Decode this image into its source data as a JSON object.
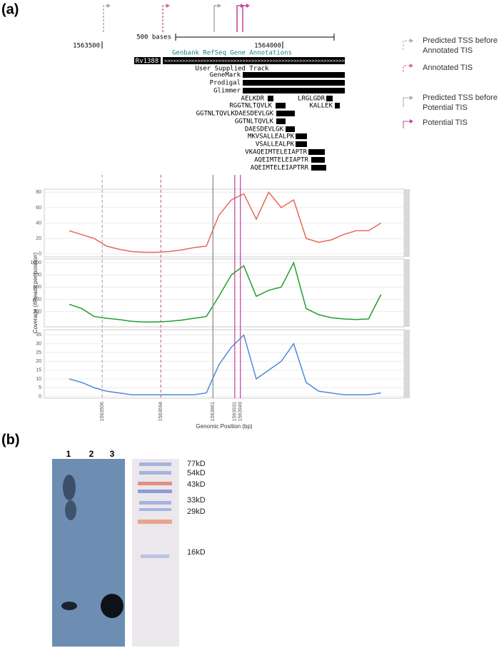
{
  "panel_a": {
    "label": "(a)",
    "legend": [
      [
        "Predicted TSS before",
        "Annotated TIS"
      ],
      [
        "Annotated TIS"
      ],
      [
        "Predicted TSS before",
        "Potential TIS"
      ],
      [
        "Potential TIS"
      ]
    ],
    "browser": {
      "scale_label": "500 bases",
      "positions": [
        "1563500",
        "1564000"
      ],
      "track_title": "Genbank RefSeq Gene Annotations",
      "gene": "Rv1388",
      "user_track": "User Supplied Track",
      "predictors": [
        "GeneMark",
        "Prodigal",
        "Glimmer"
      ],
      "peptides": [
        "AELKDR",
        "LRGLGDR",
        "RGGTNLTQVLK",
        "KALLEK",
        "GGTNLTQVLKDAESDEVLGK",
        "GGTNLTQVLK",
        "DAESDEVLGK",
        "MKVSALLEALPK",
        "VSALLEALPK",
        "VKAQEIMTELEIAPTR",
        "AQEIMTELEIAPTR",
        "AQEIMTELEIAPTRR"
      ]
    }
  },
  "chart_data": [
    {
      "type": "line",
      "x": [
        1563400,
        1563440,
        1563480,
        1563520,
        1563560,
        1563600,
        1563640,
        1563680,
        1563720,
        1563760,
        1563800,
        1563840,
        1563880,
        1563920,
        1563960,
        1564000,
        1564040,
        1564080,
        1564120,
        1564160,
        1564200,
        1564240,
        1564280,
        1564320,
        1564360,
        1564400
      ],
      "series": [
        {
          "color": "#e8675a",
          "values": [
            30,
            25,
            20,
            10,
            6,
            3,
            2,
            2,
            3,
            5,
            8,
            10,
            50,
            70,
            78,
            45,
            80,
            60,
            70,
            20,
            15,
            18,
            25,
            30,
            30,
            40
          ]
        }
      ],
      "xlim": [
        1563320,
        1564474
      ],
      "ylim": [
        -4,
        84
      ],
      "yticks": [
        0,
        20,
        40,
        60,
        80
      ]
    },
    {
      "type": "line",
      "y_label": "Coverage (#Reads per position)",
      "x": [
        1563400,
        1563440,
        1563480,
        1563520,
        1563560,
        1563600,
        1563640,
        1563680,
        1563720,
        1563760,
        1563800,
        1563840,
        1563880,
        1563920,
        1563960,
        1564000,
        1564040,
        1564080,
        1564120,
        1564160,
        1564200,
        1564240,
        1564280,
        1564320,
        1564360,
        1564400
      ],
      "series": [
        {
          "color": "#1f9e2e",
          "values": [
            320,
            250,
            120,
            90,
            70,
            40,
            30,
            30,
            40,
            60,
            90,
            120,
            450,
            800,
            950,
            450,
            550,
            600,
            1000,
            250,
            150,
            100,
            80,
            70,
            80,
            480
          ]
        }
      ],
      "xlim": [
        1563320,
        1564474
      ],
      "ylim": [
        -50,
        1060
      ],
      "yticks": [
        200,
        400,
        600,
        800,
        1000
      ]
    },
    {
      "type": "line",
      "x_label": "Genomic Position (bp)",
      "x": [
        1563400,
        1563440,
        1563480,
        1563520,
        1563560,
        1563600,
        1563640,
        1563680,
        1563720,
        1563760,
        1563800,
        1563840,
        1563880,
        1563920,
        1563960,
        1564000,
        1564040,
        1564080,
        1564120,
        1564160,
        1564200,
        1564240,
        1564280,
        1564320,
        1564360,
        1564400
      ],
      "series": [
        {
          "color": "#4f8ad8",
          "values": [
            10,
            8,
            5,
            3,
            2,
            1,
            1,
            1,
            1,
            1,
            1,
            2,
            18,
            28,
            35,
            10,
            15,
            20,
            30,
            8,
            3,
            2,
            1,
            1,
            1,
            2
          ]
        }
      ],
      "xlim": [
        1563320,
        1564474
      ],
      "ylim": [
        -1,
        38
      ],
      "yticks": [
        0,
        5,
        10,
        15,
        20,
        25,
        30,
        35
      ],
      "xticks": [
        1563506,
        1563694,
        1563861,
        1563931,
        1563949
      ]
    }
  ],
  "panel_b": {
    "label": "(b)",
    "lanes": [
      "1",
      "2",
      "3"
    ],
    "markers": [
      "77kD",
      "54kD",
      "43kD",
      "33kD",
      "29kD",
      "16kD"
    ]
  }
}
